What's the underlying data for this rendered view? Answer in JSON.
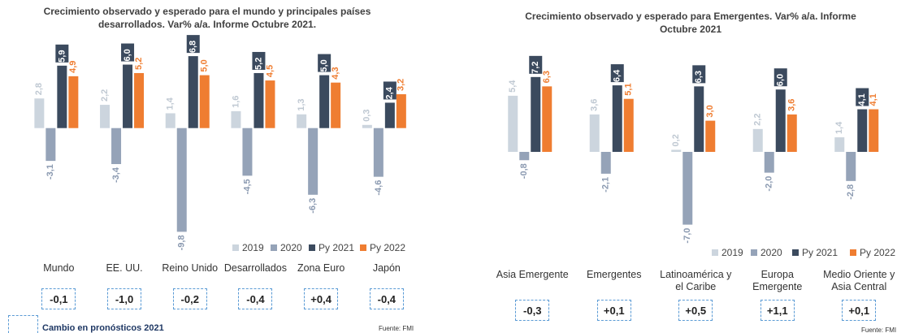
{
  "chart_data": [
    {
      "type": "bar",
      "title": "Crecimiento observado y esperado para el mundo y principales países desarrollados. Var% a/a. Informe Octubre 2021.",
      "categories": [
        "Mundo",
        "EE. UU.",
        "Reino Unido",
        "Desarrollados",
        "Zona Euro",
        "Japón"
      ],
      "series": [
        {
          "name": "2019",
          "color": "#ccd5de",
          "label_color": "#bfc8d2",
          "values": [
            2.8,
            2.2,
            1.4,
            1.6,
            1.3,
            0.3
          ],
          "value_labels": [
            "2,8",
            "2,2",
            "1,4",
            "1,6",
            "1,3",
            "0,3"
          ]
        },
        {
          "name": "2020",
          "color": "#95a3b8",
          "label_color": "#8a99b0",
          "values": [
            -3.1,
            -3.4,
            -9.8,
            -4.5,
            -6.3,
            -4.6
          ],
          "value_labels": [
            "-3,1",
            "-3,4",
            "-9,8",
            "-4,5",
            "-6,3",
            "-4,6"
          ]
        },
        {
          "name": "Py 2021",
          "color": "#3b4a5e",
          "label_color": "#ffffff",
          "values": [
            5.9,
            6.0,
            6.8,
            5.2,
            5.0,
            2.4
          ],
          "value_labels": [
            "5,9",
            "6,0",
            "6,8",
            "5,2",
            "5,0",
            "2,4"
          ]
        },
        {
          "name": "Py 2022",
          "color": "#ef7d31",
          "label_color": "#ef7d31",
          "values": [
            4.9,
            5.2,
            5.0,
            4.5,
            4.3,
            3.2
          ],
          "value_labels": [
            "4,9",
            "5,2",
            "5,0",
            "4,5",
            "4,3",
            "3,2"
          ]
        }
      ],
      "ylim": [
        -10,
        7.5
      ],
      "legend": "bottom-right",
      "revisions": [
        "-0,1",
        "-1,0",
        "-0,2",
        "-0,4",
        "+0,4",
        "-0,4"
      ],
      "revision_note": "Cambio en pronósticos 2021",
      "source": "Fuente: FMI"
    },
    {
      "type": "bar",
      "title": "Crecimiento observado y esperado para Emergentes. Var% a/a. Informe Octubre 2021",
      "categories": [
        "Asia Emergente",
        "Emergentes",
        "Latinoamérica y el Caribe",
        "Europa Emergente",
        "Medio Oriente y Asia Central"
      ],
      "series": [
        {
          "name": "2019",
          "color": "#ccd5de",
          "label_color": "#bfc8d2",
          "values": [
            5.4,
            3.6,
            0.2,
            2.2,
            1.4
          ],
          "value_labels": [
            "5,4",
            "3,6",
            "0,2",
            "2,2",
            "1,4"
          ]
        },
        {
          "name": "2020",
          "color": "#95a3b8",
          "label_color": "#8a99b0",
          "values": [
            -0.8,
            -2.1,
            -7.0,
            -2.0,
            -2.8
          ],
          "value_labels": [
            "-0,8",
            "-2,1",
            "-7,0",
            "-2,0",
            "-2,8"
          ]
        },
        {
          "name": "Py 2021",
          "color": "#3b4a5e",
          "label_color": "#ffffff",
          "values": [
            7.2,
            6.4,
            6.3,
            6.0,
            4.1
          ],
          "value_labels": [
            "7,2",
            "6,4",
            "6,3",
            "6,0",
            "4,1"
          ]
        },
        {
          "name": "Py 2022",
          "color": "#ef7d31",
          "label_color": "#ef7d31",
          "values": [
            6.3,
            5.1,
            3.0,
            3.6,
            4.1
          ],
          "value_labels": [
            "6,3",
            "5,1",
            "3,0",
            "3,6",
            "4,1"
          ]
        }
      ],
      "ylim": [
        -7.5,
        7.5
      ],
      "legend": "bottom-right",
      "revisions": [
        "-0,3",
        "+0,1",
        "+0,5",
        "+1,1",
        "+0,1"
      ],
      "source": "Fuente: FMI"
    }
  ]
}
